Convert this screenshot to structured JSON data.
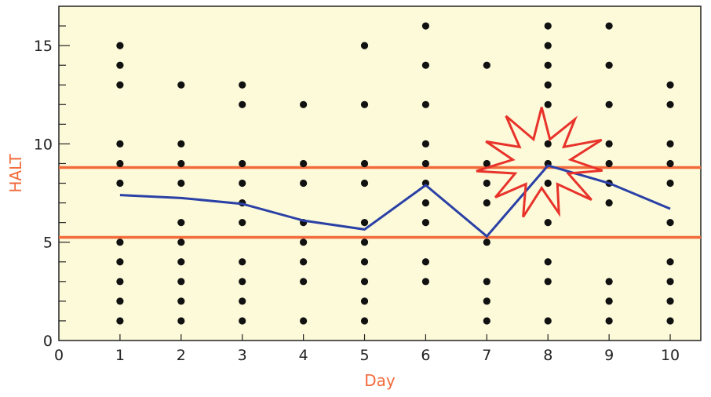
{
  "chart_data": {
    "type": "scatter",
    "title": "",
    "xlabel": "Day",
    "ylabel": "HALT",
    "xlim": [
      0,
      10.5
    ],
    "ylim": [
      0,
      17
    ],
    "xticks": [
      0,
      1,
      2,
      3,
      4,
      5,
      6,
      7,
      8,
      9,
      10
    ],
    "yticks": [
      0,
      5,
      10,
      15
    ],
    "minor_y_step": 1,
    "grid": false,
    "colors": {
      "plot_background": "#fcfad9",
      "points": "#111111",
      "mean_line": "#2a40a6",
      "limit_lines": "#f26a3a",
      "axis_titles": "#f26a3a",
      "starburst": "#e8322a"
    },
    "points": [
      {
        "x": 1,
        "ys": [
          1,
          2,
          3,
          4,
          5,
          8,
          9,
          10,
          13,
          14,
          15
        ]
      },
      {
        "x": 2,
        "ys": [
          1,
          2,
          3,
          4,
          5,
          6,
          8,
          9,
          10,
          13
        ]
      },
      {
        "x": 3,
        "ys": [
          1,
          2,
          3,
          4,
          6,
          7,
          8,
          9,
          12,
          13
        ]
      },
      {
        "x": 4,
        "ys": [
          1,
          3,
          4,
          5,
          6,
          8,
          9,
          12
        ]
      },
      {
        "x": 5,
        "ys": [
          1,
          2,
          3,
          4,
          5,
          6,
          8,
          9,
          12,
          15
        ]
      },
      {
        "x": 6,
        "ys": [
          3,
          4,
          6,
          7,
          8,
          9,
          10,
          12,
          14,
          16
        ]
      },
      {
        "x": 7,
        "ys": [
          1,
          2,
          3,
          5,
          7,
          8,
          9,
          14
        ]
      },
      {
        "x": 8,
        "ys": [
          1,
          3,
          4,
          6,
          8,
          9,
          10,
          12,
          13,
          14,
          15,
          16
        ]
      },
      {
        "x": 9,
        "ys": [
          1,
          2,
          3,
          7,
          8,
          9,
          10,
          12,
          14,
          16
        ]
      },
      {
        "x": 10,
        "ys": [
          1,
          2,
          3,
          4,
          6,
          8,
          9,
          10,
          12,
          13
        ]
      }
    ],
    "mean_line": {
      "x": [
        1,
        2,
        3,
        4,
        5,
        6,
        7,
        8,
        9,
        10
      ],
      "y": [
        7.4,
        7.25,
        6.95,
        6.1,
        5.65,
        7.9,
        5.3,
        8.9,
        8.0,
        6.7
      ]
    },
    "limit_lines": [
      8.8,
      5.25
    ],
    "annotation": {
      "shape": "starburst",
      "icon": "starburst-icon",
      "at": {
        "x": 8,
        "y": 8.9
      }
    }
  }
}
